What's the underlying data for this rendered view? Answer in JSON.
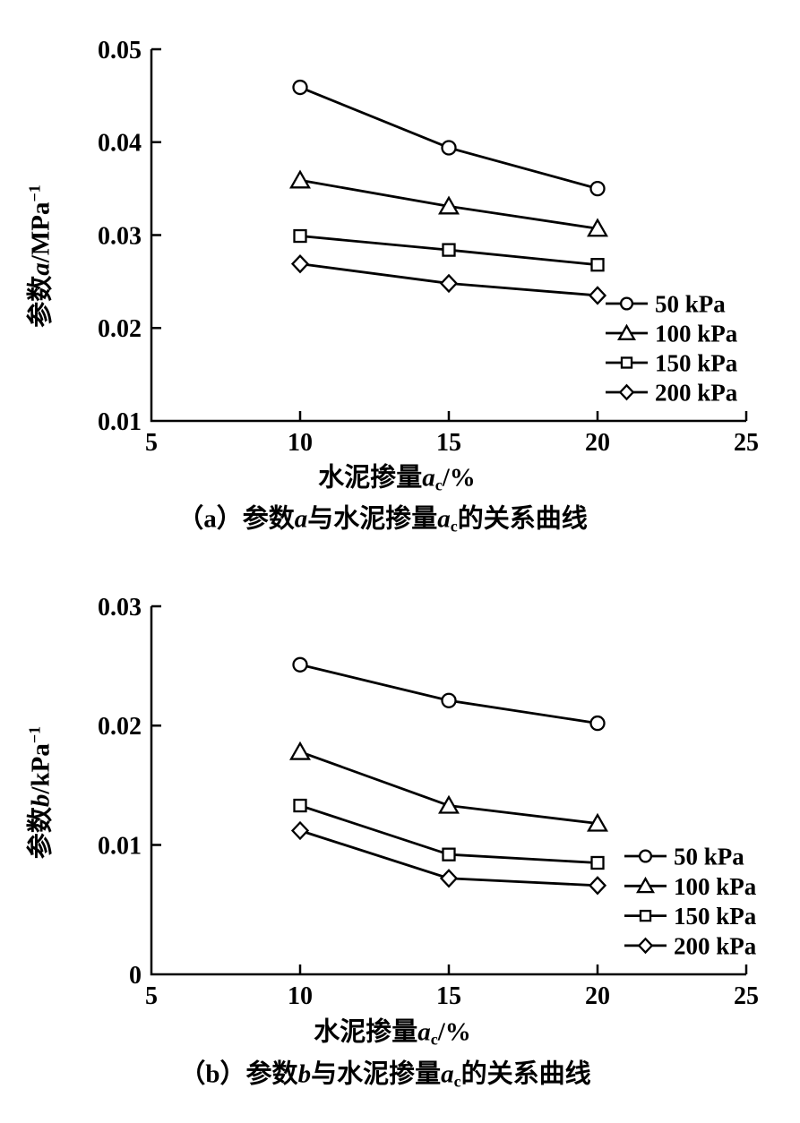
{
  "page": {
    "background": "#ffffff",
    "ink": "#000000"
  },
  "charts": [
    {
      "key": "a",
      "y_axis_title": {
        "prefix": "参数",
        "symbol": "a",
        "unit": "/MPa",
        "exp": "−1"
      },
      "x_axis_title": {
        "prefix": "水泥掺量",
        "symbol": "a",
        "subscript": "c",
        "suffix": "/%"
      },
      "caption": {
        "index": "（a）",
        "pre": "参数",
        "symbol1": "a",
        "mid": "与水泥掺量",
        "symbol2": "a",
        "subscript": "c",
        "post": "的关系曲线"
      }
    },
    {
      "key": "b",
      "y_axis_title": {
        "prefix": "参数",
        "symbol": "b",
        "unit": "/kPa",
        "exp": "−1"
      },
      "x_axis_title": {
        "prefix": "水泥掺量",
        "symbol": "a",
        "subscript": "c",
        "suffix": "/%"
      },
      "caption": {
        "index": "（b）",
        "pre": "参数",
        "symbol1": "b",
        "mid": "与水泥掺量",
        "symbol2": "a",
        "subscript": "c",
        "post": "的关系曲线"
      }
    }
  ],
  "chart_data": [
    {
      "type": "line",
      "title": "（a）参数a与水泥掺量ac的关系曲线",
      "xlabel": "水泥掺量ac/%",
      "ylabel": "参数a/MPa−1",
      "x": [
        10,
        15,
        20
      ],
      "xlim": [
        5,
        25
      ],
      "ylim": [
        0.01,
        0.05
      ],
      "xtick_labels": [
        "5",
        "10",
        "15",
        "20",
        "25"
      ],
      "ytick_labels": [
        "0.01",
        "0.02",
        "0.03",
        "0.04",
        "0.05"
      ],
      "grid": false,
      "legend_position": "inside-right-bottom",
      "series": [
        {
          "name": "50 kPa",
          "marker": "circle",
          "values": [
            0.0459,
            0.0394,
            0.035
          ]
        },
        {
          "name": "100 kPa",
          "marker": "triangle",
          "values": [
            0.0359,
            0.0331,
            0.0307
          ]
        },
        {
          "name": "150 kPa",
          "marker": "square",
          "values": [
            0.0299,
            0.0284,
            0.0268
          ]
        },
        {
          "name": "200 kPa",
          "marker": "diamond",
          "values": [
            0.0269,
            0.0248,
            0.0235
          ]
        }
      ]
    },
    {
      "type": "line",
      "title": "（b）参数b与水泥掺量ac的关系曲线",
      "xlabel": "水泥掺量ac/%",
      "ylabel": "参数b/kPa−1",
      "x": [
        10,
        15,
        20
      ],
      "xlim": [
        5,
        25
      ],
      "ylim": [
        0,
        0.03
      ],
      "xtick_labels": [
        "5",
        "10",
        "15",
        "20",
        "25"
      ],
      "ytick_labels": [
        "0",
        "0.01",
        "0.02",
        "0.03"
      ],
      "grid": false,
      "legend_position": "inside-right-bottom",
      "series": [
        {
          "name": "50 kPa",
          "marker": "circle",
          "values": [
            0.0251,
            0.0221,
            0.0202
          ]
        },
        {
          "name": "100 kPa",
          "marker": "triangle",
          "values": [
            0.0178,
            0.0133,
            0.0118
          ]
        },
        {
          "name": "150 kPa",
          "marker": "square",
          "values": [
            0.0133,
            0.0092,
            0.0085
          ]
        },
        {
          "name": "200 kPa",
          "marker": "diamond",
          "values": [
            0.0112,
            0.0072,
            0.0066
          ]
        }
      ]
    }
  ]
}
